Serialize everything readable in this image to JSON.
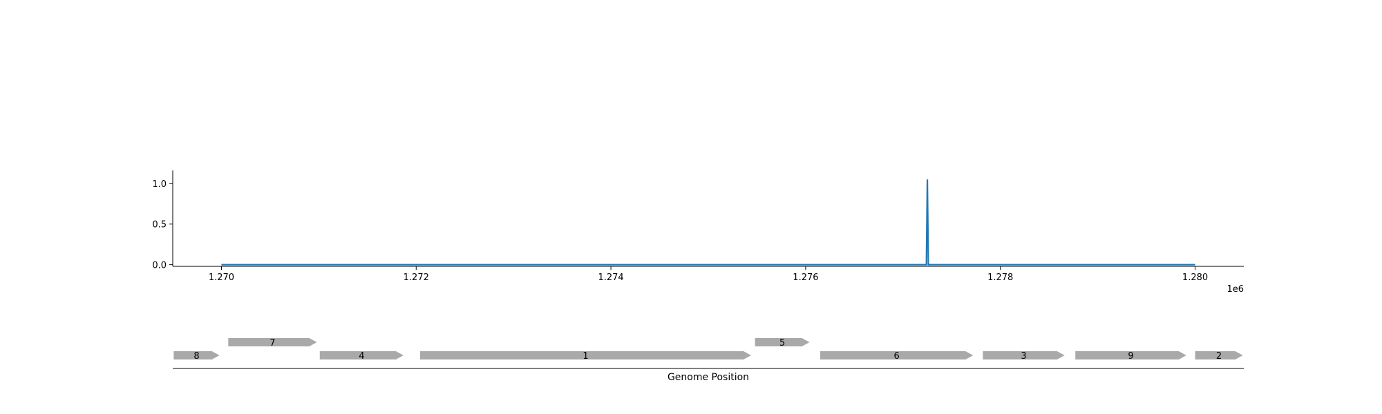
{
  "chart_data": [
    {
      "type": "line",
      "x": [
        1270000,
        1277240,
        1277250,
        1277260,
        1280000
      ],
      "y": [
        0.0,
        0.0,
        1.05,
        0.0,
        0.0
      ],
      "xlim": [
        1269500,
        1280500
      ],
      "ylim": [
        -0.02,
        1.16
      ],
      "xticks": [
        1270000,
        1272000,
        1274000,
        1276000,
        1278000,
        1280000
      ],
      "xtick_labels": [
        "1.270",
        "1.272",
        "1.274",
        "1.276",
        "1.278",
        "1.280"
      ],
      "yticks": [
        0.0,
        0.5,
        1.0
      ],
      "ytick_labels": [
        "0.0",
        "0.5",
        "1.0"
      ],
      "x_offset_label": "1e6",
      "grid": false,
      "color": "#1f77b4"
    },
    {
      "type": "gene-track",
      "xlabel": "Genome Position",
      "genes": [
        {
          "label": "8",
          "start": 1269510,
          "end": 1269980,
          "row": 0
        },
        {
          "label": "7",
          "start": 1270070,
          "end": 1270980,
          "row": 1
        },
        {
          "label": "4",
          "start": 1271010,
          "end": 1271870,
          "row": 0
        },
        {
          "label": "1",
          "start": 1272040,
          "end": 1275440,
          "row": 0
        },
        {
          "label": "5",
          "start": 1275480,
          "end": 1276040,
          "row": 1
        },
        {
          "label": "6",
          "start": 1276150,
          "end": 1277720,
          "row": 0
        },
        {
          "label": "3",
          "start": 1277820,
          "end": 1278660,
          "row": 0
        },
        {
          "label": "9",
          "start": 1278770,
          "end": 1279910,
          "row": 0
        },
        {
          "label": "2",
          "start": 1280000,
          "end": 1280490,
          "row": 0
        }
      ],
      "gene_color": "#a9a9a9"
    }
  ]
}
